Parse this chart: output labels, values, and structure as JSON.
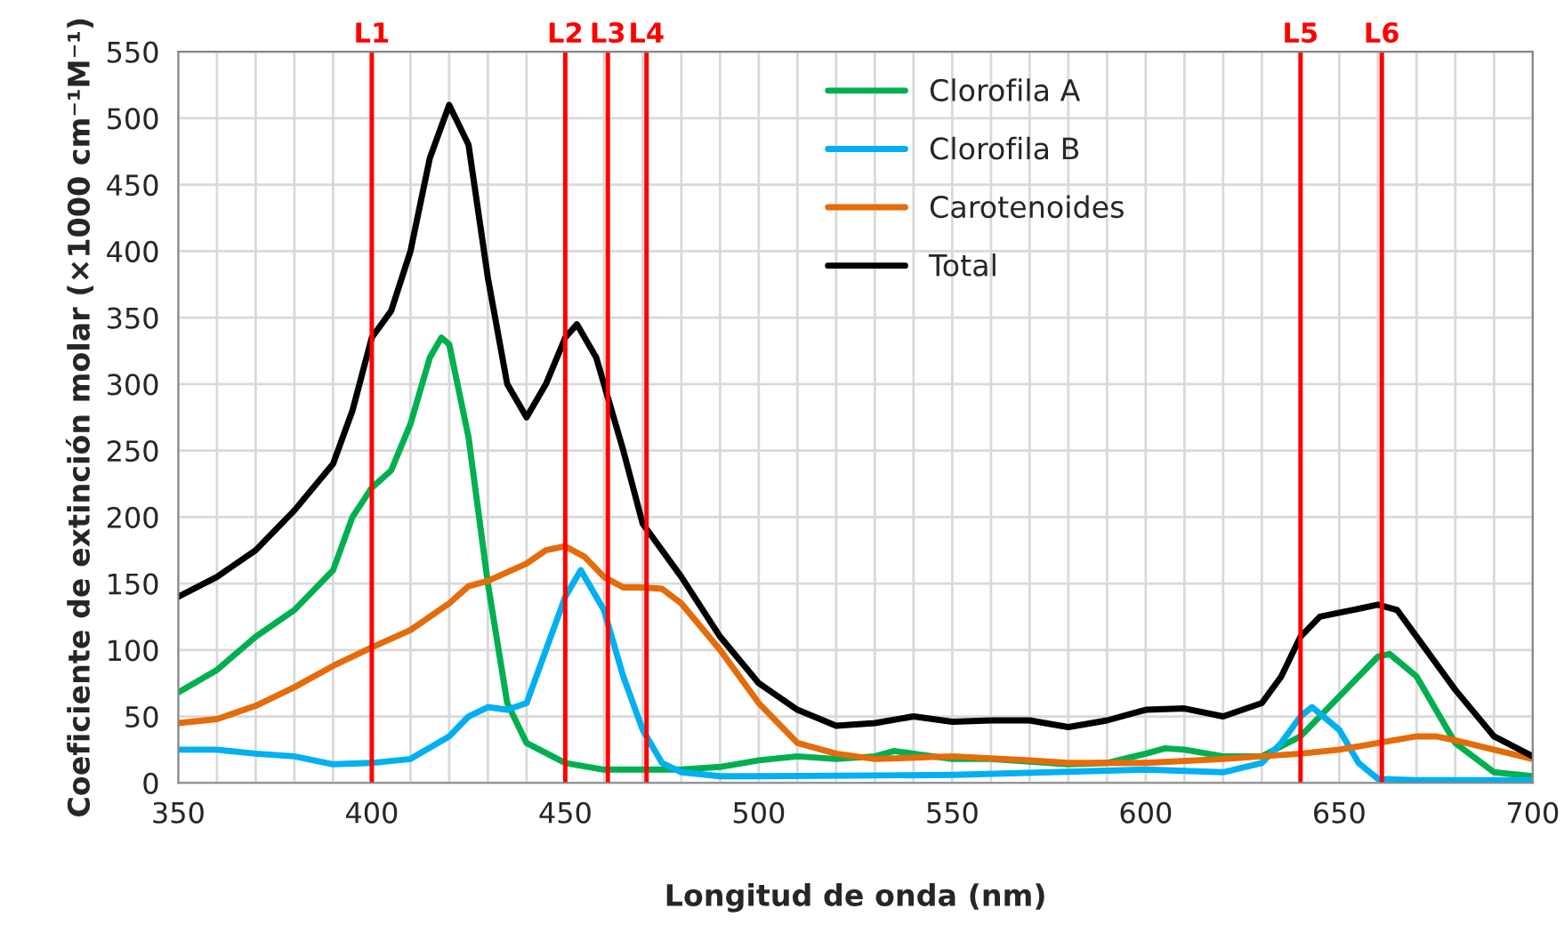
{
  "chart_data": {
    "type": "line",
    "xlabel": "Longitud de onda (nm)",
    "ylabel": "Coeficiente de extinción molar (×1000 cm⁻¹M⁻¹)",
    "xlim": [
      350,
      700
    ],
    "xticks": [
      350,
      400,
      450,
      500,
      550,
      600,
      650,
      700
    ],
    "ylim": [
      0,
      550
    ],
    "yticks": [
      0,
      50,
      100,
      150,
      200,
      250,
      300,
      350,
      400,
      450,
      500,
      550
    ],
    "grid": true,
    "legend": "top right",
    "marker": "none",
    "line_style": "solid",
    "series": [
      {
        "name": "Clorofila A",
        "color": "#00b050",
        "x": [
          350,
          360,
          370,
          380,
          390,
          395,
          400,
          405,
          410,
          415,
          418,
          420,
          425,
          430,
          435,
          440,
          450,
          460,
          470,
          480,
          490,
          500,
          510,
          520,
          530,
          535,
          540,
          550,
          560,
          570,
          580,
          590,
          600,
          605,
          610,
          620,
          630,
          640,
          650,
          660,
          663,
          670,
          680,
          690,
          700
        ],
        "values": [
          68,
          85,
          110,
          130,
          160,
          200,
          222,
          235,
          270,
          320,
          335,
          330,
          260,
          150,
          60,
          30,
          15,
          10,
          10,
          10,
          12,
          17,
          20,
          18,
          20,
          24,
          22,
          18,
          18,
          null,
          14,
          15,
          22,
          26,
          25,
          20,
          20,
          35,
          65,
          95,
          97,
          80,
          30,
          8,
          5
        ]
      },
      {
        "name": "Clorofila B",
        "color": "#00b0f0",
        "x": [
          350,
          360,
          370,
          380,
          390,
          400,
          410,
          420,
          425,
          430,
          435,
          440,
          445,
          450,
          454,
          460,
          465,
          470,
          475,
          480,
          490,
          500,
          550,
          600,
          620,
          630,
          635,
          640,
          643,
          650,
          655,
          660,
          670,
          700
        ],
        "values": [
          25,
          25,
          22,
          20,
          14,
          15,
          18,
          35,
          50,
          57,
          55,
          60,
          100,
          140,
          160,
          130,
          80,
          40,
          15,
          8,
          5,
          5,
          6,
          10,
          8,
          15,
          30,
          50,
          57,
          40,
          15,
          3,
          2,
          2
        ]
      },
      {
        "name": "Carotenoides",
        "color": "#e46c0a",
        "x": [
          350,
          360,
          370,
          380,
          390,
          400,
          410,
          420,
          425,
          430,
          440,
          445,
          450,
          455,
          460,
          465,
          470,
          475,
          480,
          490,
          500,
          510,
          520,
          530,
          550,
          570,
          580,
          600,
          620,
          640,
          650,
          660,
          670,
          675,
          680,
          690,
          700
        ],
        "values": [
          45,
          48,
          58,
          72,
          88,
          102,
          115,
          135,
          148,
          152,
          165,
          175,
          178,
          170,
          155,
          147,
          147,
          146,
          135,
          100,
          60,
          30,
          22,
          18,
          20,
          17,
          15,
          15,
          18,
          22,
          25,
          30,
          35,
          35,
          32,
          25,
          18
        ]
      },
      {
        "name": "Total",
        "color": "#000000",
        "x": [
          350,
          360,
          370,
          380,
          390,
          395,
          400,
          405,
          410,
          415,
          420,
          425,
          430,
          435,
          440,
          445,
          450,
          453,
          458,
          465,
          470,
          480,
          490,
          500,
          510,
          520,
          530,
          540,
          550,
          560,
          570,
          580,
          590,
          600,
          610,
          620,
          630,
          635,
          640,
          645,
          650,
          660,
          665,
          670,
          680,
          690,
          700
        ],
        "values": [
          140,
          155,
          175,
          205,
          240,
          280,
          335,
          355,
          400,
          470,
          510,
          480,
          380,
          300,
          275,
          300,
          335,
          345,
          320,
          250,
          195,
          155,
          110,
          75,
          55,
          43,
          45,
          50,
          46,
          47,
          47,
          42,
          47,
          55,
          56,
          50,
          60,
          80,
          110,
          125,
          128,
          134,
          130,
          110,
          70,
          35,
          20
        ]
      }
    ],
    "ref_lines": [
      {
        "axis": "x",
        "value": 400,
        "label": "L1",
        "color": "#ff0000"
      },
      {
        "axis": "x",
        "value": 450,
        "label": "L2",
        "color": "#ff0000"
      },
      {
        "axis": "x",
        "value": 461,
        "label": "L3",
        "color": "#ff0000"
      },
      {
        "axis": "x",
        "value": 471,
        "label": "L4",
        "color": "#ff0000"
      },
      {
        "axis": "x",
        "value": 640,
        "label": "L5",
        "color": "#ff0000"
      },
      {
        "axis": "x",
        "value": 661,
        "label": "L6",
        "color": "#ff0000"
      }
    ]
  }
}
